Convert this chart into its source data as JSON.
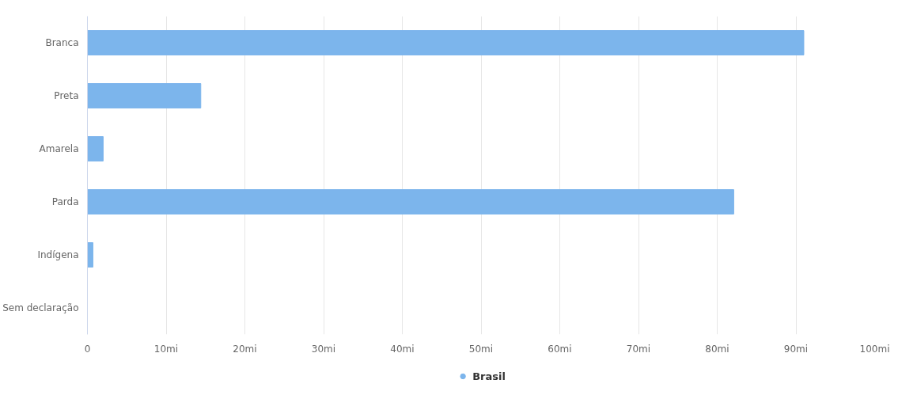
{
  "chart_data": {
    "type": "bar",
    "orientation": "horizontal",
    "categories": [
      "Branca",
      "Preta",
      "Amarela",
      "Parda",
      "Indígena",
      "Sem declaração"
    ],
    "series": [
      {
        "name": "Brasil",
        "color": "#7cb5ec",
        "values": [
          91.0,
          14.4,
          2.0,
          82.1,
          0.7,
          0
        ]
      }
    ],
    "xlim": [
      0,
      100
    ],
    "xticks": [
      0,
      {
        "value": 10,
        "label": "10mi"
      },
      {
        "value": 20,
        "label": "20mi"
      },
      {
        "value": 30,
        "label": "30mi"
      },
      {
        "value": 40,
        "label": "40mi"
      },
      {
        "value": 50,
        "label": "50mi"
      },
      {
        "value": 60,
        "label": "60mi"
      },
      {
        "value": 70,
        "label": "70mi"
      },
      {
        "value": 80,
        "label": "80mi"
      },
      {
        "value": 90,
        "label": "90mi"
      },
      {
        "value": 100,
        "label": "100mi"
      }
    ],
    "grid": "x",
    "legend": "bottom"
  }
}
